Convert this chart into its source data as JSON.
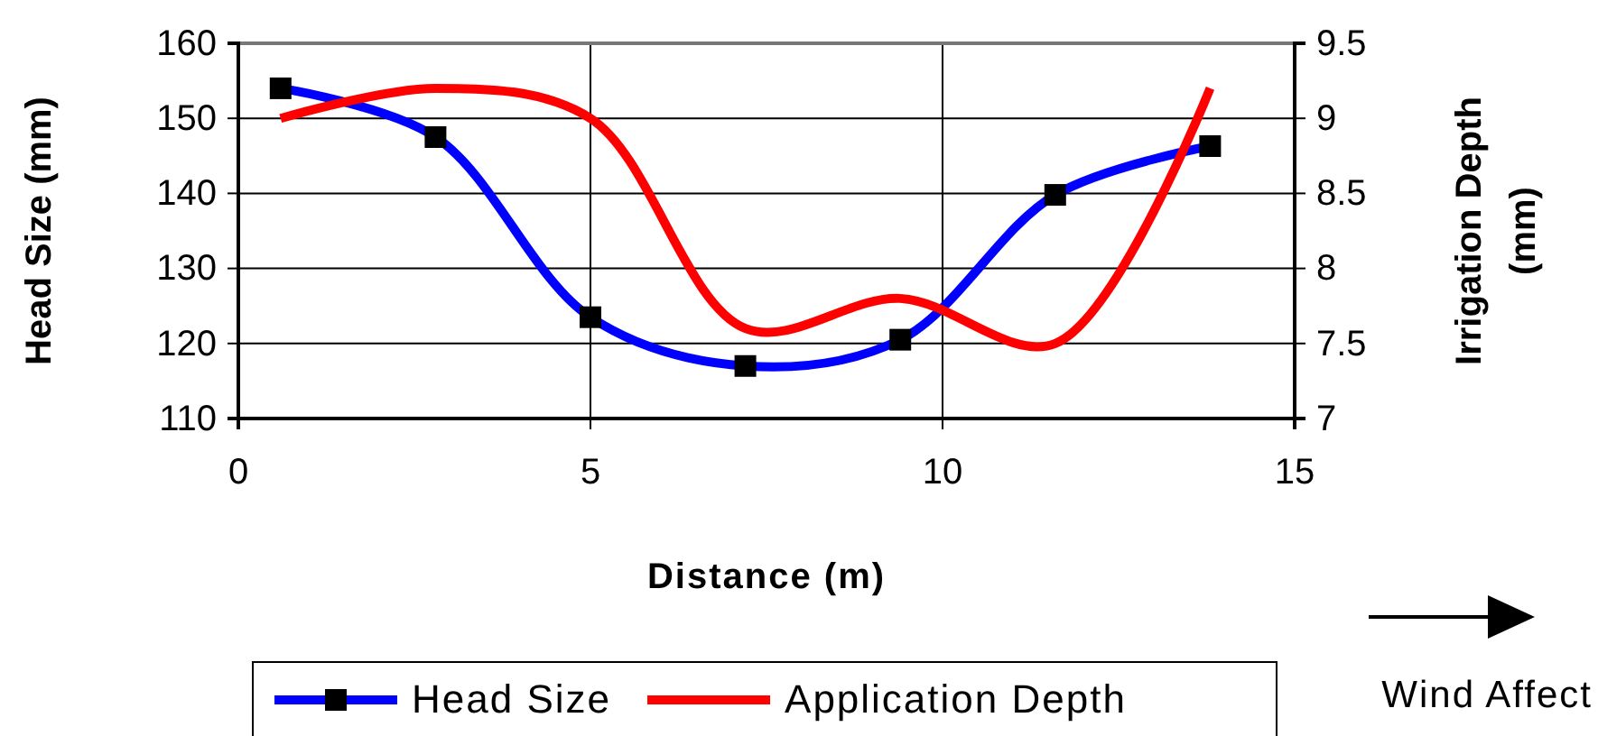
{
  "chart_data": {
    "type": "line",
    "xlabel": "Distance (m)",
    "ylabel": "Head Size (mm)",
    "y2label": "Irrigation Depth (mm)",
    "xlim": [
      0,
      15
    ],
    "xticks": [
      0,
      5,
      10,
      15
    ],
    "ylim": [
      110,
      160
    ],
    "yticks": [
      110,
      120,
      130,
      140,
      150,
      160
    ],
    "y2lim": [
      7,
      9.5
    ],
    "y2ticks": [
      7,
      7.5,
      8,
      8.5,
      9,
      9.5
    ],
    "x": [
      0.6,
      2.8,
      5.0,
      7.2,
      9.4,
      11.6,
      13.8
    ],
    "series": [
      {
        "name": "Head Size",
        "color": "#0000ff",
        "marker": "square",
        "values": [
          154,
          147.5,
          123.5,
          117,
          120.5,
          139.8,
          146.3
        ]
      },
      {
        "name": "Application Depth",
        "color": "#ff0000",
        "marker": "none",
        "axis": "y2",
        "values": [
          9.0,
          9.2,
          9.0,
          7.6,
          7.8,
          7.5,
          9.2
        ]
      }
    ],
    "grid": true,
    "legend": "bottom",
    "line_style": "solid",
    "annotations": [
      "Wind Affect"
    ]
  }
}
